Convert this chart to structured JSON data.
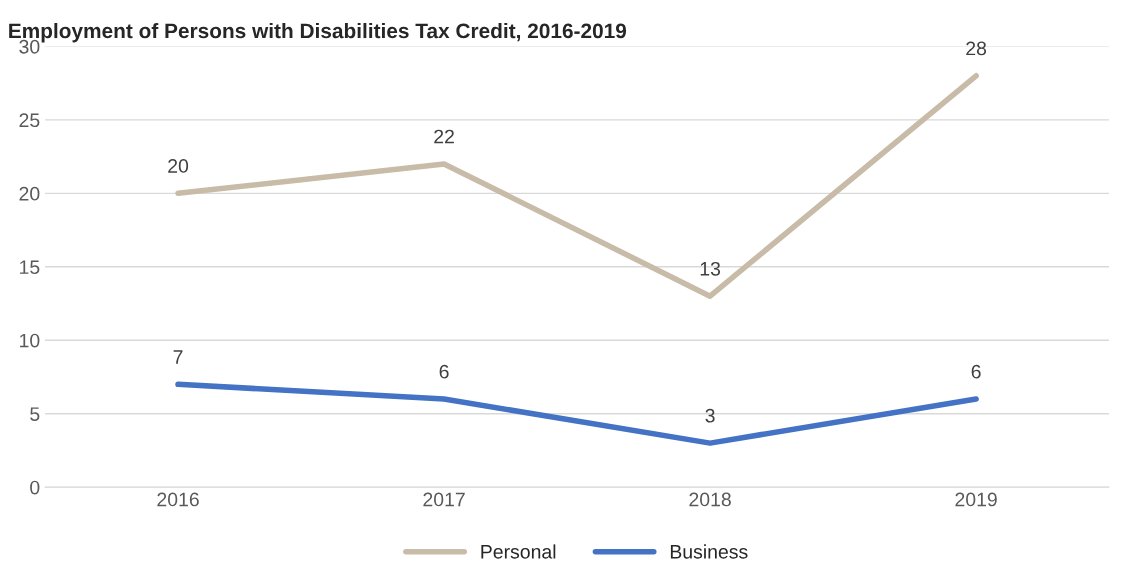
{
  "chart_data": {
    "type": "line",
    "title": "Employment of Persons with Disabilities Tax Credit, 2016-2019",
    "categories": [
      "2016",
      "2017",
      "2018",
      "2019"
    ],
    "series": [
      {
        "name": "Personal",
        "color": "#c8bba8",
        "values": [
          20,
          22,
          13,
          28
        ]
      },
      {
        "name": "Business",
        "color": "#4472c4",
        "values": [
          7,
          6,
          3,
          6
        ]
      }
    ],
    "ylim": [
      0,
      30
    ],
    "yticks": [
      0,
      5,
      10,
      15,
      20,
      25,
      30
    ],
    "grid": "y",
    "legend": "bottom",
    "data_labels": true,
    "marker": "none",
    "line_style": "solid"
  }
}
